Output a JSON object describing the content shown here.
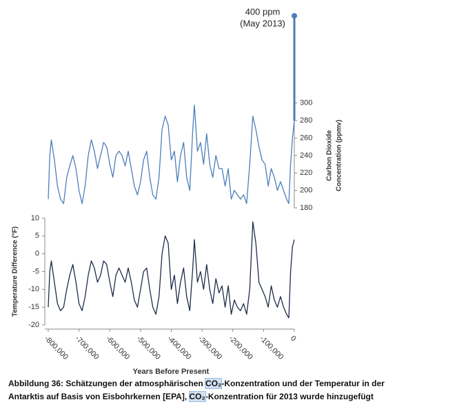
{
  "chart_data": [
    {
      "type": "line",
      "ylabel": [
        "Carbon Dioxide",
        "Concentration (ppmv)"
      ],
      "xlim": [
        -800000,
        0
      ],
      "ylim": [
        180,
        400
      ],
      "yticks": [
        180,
        200,
        220,
        240,
        260,
        280,
        300
      ],
      "annotation": {
        "text": [
          "400 ppm",
          "(May 2013)"
        ],
        "x": 0,
        "y": 400
      },
      "x": [
        -800000,
        -795000,
        -790000,
        -780000,
        -770000,
        -760000,
        -750000,
        -740000,
        -730000,
        -720000,
        -710000,
        -700000,
        -690000,
        -680000,
        -670000,
        -660000,
        -650000,
        -640000,
        -630000,
        -620000,
        -610000,
        -600000,
        -590000,
        -580000,
        -570000,
        -560000,
        -550000,
        -540000,
        -530000,
        -520000,
        -510000,
        -500000,
        -490000,
        -480000,
        -470000,
        -460000,
        -450000,
        -440000,
        -430000,
        -420000,
        -410000,
        -400000,
        -390000,
        -380000,
        -370000,
        -360000,
        -350000,
        -340000,
        -330000,
        -325000,
        -315000,
        -305000,
        -295000,
        -285000,
        -275000,
        -265000,
        -255000,
        -245000,
        -235000,
        -225000,
        -215000,
        -205000,
        -195000,
        -185000,
        -175000,
        -165000,
        -155000,
        -145000,
        -135000,
        -125000,
        -115000,
        -105000,
        -95000,
        -85000,
        -75000,
        -65000,
        -55000,
        -45000,
        -35000,
        -25000,
        -18000,
        -12000,
        -6000,
        0
      ],
      "series": [
        {
          "name": "Carbon Dioxide",
          "color": "#4a7ebb",
          "axis": "y2",
          "values": [
            190,
            240,
            258,
            235,
            205,
            190,
            185,
            215,
            228,
            240,
            225,
            200,
            185,
            205,
            240,
            258,
            245,
            225,
            240,
            255,
            250,
            230,
            215,
            240,
            245,
            240,
            228,
            245,
            225,
            205,
            195,
            210,
            235,
            245,
            215,
            195,
            190,
            215,
            270,
            285,
            275,
            235,
            245,
            210,
            240,
            255,
            215,
            200,
            270,
            298,
            245,
            255,
            230,
            265,
            230,
            215,
            240,
            225,
            225,
            205,
            225,
            190,
            200,
            195,
            190,
            195,
            185,
            230,
            285,
            270,
            250,
            235,
            230,
            205,
            225,
            215,
            200,
            210,
            200,
            190,
            185,
            230,
            260,
            280
          ]
        }
      ]
    },
    {
      "type": "line",
      "ylabel": "Temperature Difference (°F)",
      "xlabel": "Years Before Present",
      "xlim": [
        -800000,
        0
      ],
      "xticks": [
        {
          "value": -800000,
          "label": "-800,000"
        },
        {
          "value": -700000,
          "label": "-700,000"
        },
        {
          "value": -600000,
          "label": "-600,000"
        },
        {
          "value": -500000,
          "label": "-500,000"
        },
        {
          "value": -400000,
          "label": "-400,000"
        },
        {
          "value": -300000,
          "label": "-300,000"
        },
        {
          "value": -200000,
          "label": "-200,000"
        },
        {
          "value": -100000,
          "label": "-100,000"
        },
        0
      ],
      "ylim": [
        -20,
        10
      ],
      "yticks": [
        -20,
        -15,
        -10,
        -5,
        0,
        5,
        10
      ],
      "x": [
        -800000,
        -795000,
        -790000,
        -780000,
        -770000,
        -760000,
        -750000,
        -740000,
        -730000,
        -720000,
        -710000,
        -700000,
        -690000,
        -680000,
        -670000,
        -660000,
        -650000,
        -640000,
        -630000,
        -620000,
        -610000,
        -600000,
        -590000,
        -580000,
        -570000,
        -560000,
        -550000,
        -540000,
        -530000,
        -520000,
        -510000,
        -500000,
        -490000,
        -480000,
        -470000,
        -460000,
        -450000,
        -440000,
        -430000,
        -420000,
        -410000,
        -400000,
        -390000,
        -380000,
        -370000,
        -360000,
        -350000,
        -340000,
        -330000,
        -325000,
        -315000,
        -305000,
        -295000,
        -285000,
        -275000,
        -265000,
        -255000,
        -245000,
        -235000,
        -225000,
        -215000,
        -205000,
        -195000,
        -185000,
        -175000,
        -165000,
        -155000,
        -145000,
        -135000,
        -125000,
        -115000,
        -105000,
        -95000,
        -85000,
        -75000,
        -65000,
        -55000,
        -45000,
        -35000,
        -25000,
        -18000,
        -12000,
        -6000,
        0
      ],
      "series": [
        {
          "name": "Temperature Difference",
          "color": "#1c2b4a",
          "values": [
            -15,
            -5,
            -2,
            -8,
            -14,
            -16,
            -15,
            -10,
            -6,
            -3,
            -8,
            -14,
            -16,
            -12,
            -6,
            -2,
            -4,
            -8,
            -6,
            -2,
            -3,
            -8,
            -12,
            -6,
            -4,
            -6,
            -8,
            -4,
            -8,
            -13,
            -15,
            -10,
            -5,
            -4,
            -10,
            -15,
            -17,
            -12,
            0,
            5,
            3,
            -10,
            -6,
            -14,
            -8,
            -4,
            -12,
            -16,
            -4,
            4,
            -8,
            -5,
            -10,
            -3,
            -10,
            -14,
            -7,
            -11,
            -9,
            -15,
            -9,
            -17,
            -13,
            -15,
            -16,
            -14,
            -17,
            -10,
            9,
            3,
            -8,
            -10,
            -12,
            -15,
            -9,
            -13,
            -15,
            -12,
            -15,
            -17,
            -18,
            -5,
            2,
            4
          ]
        }
      ]
    }
  ],
  "caption": [
    "Abbildung 36: Schätzungen der atmosphärischen ",
    "CO₂",
    "-Konzentration und der Temperatur in der",
    "Antarktis auf Basis von Eisbohrkernen [EPA], ",
    "CO₂",
    "-Konzentration für 2013 wurde hinzugefügt"
  ]
}
